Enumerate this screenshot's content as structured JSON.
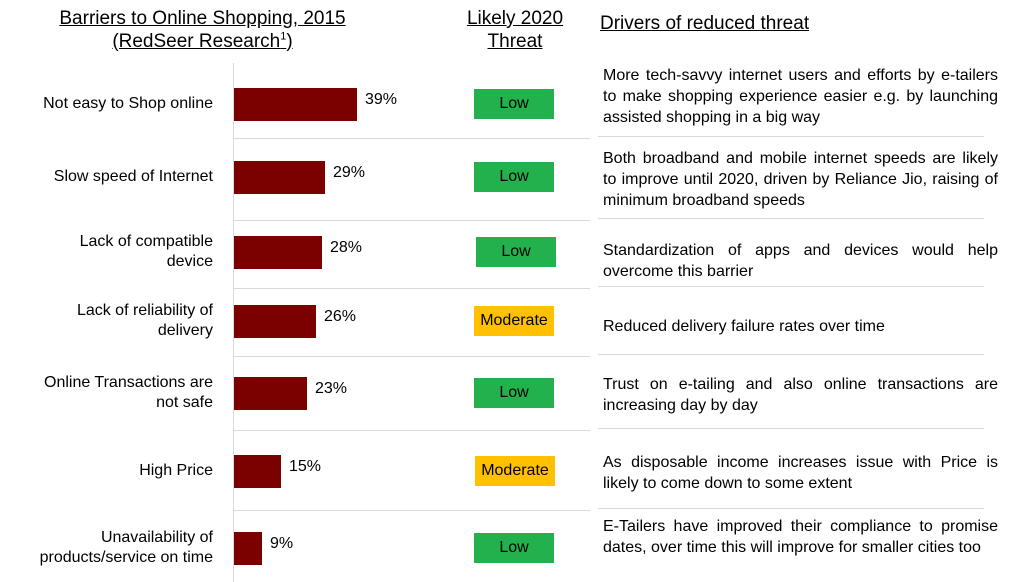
{
  "headers": {
    "barriers_title": "Barriers to Online Shopping, 2015",
    "barriers_source": "(RedSeer Research",
    "barriers_source_sup": "1",
    "barriers_source_close": ")",
    "threat_line1": "Likely 2020",
    "threat_line2": "Threat",
    "drivers": "Drivers of reduced threat"
  },
  "rows": [
    {
      "label_lines": [
        "Not easy to Shop online"
      ],
      "value_label": "39%",
      "threat": "Low",
      "threat_color": "#22b14c",
      "driver": "More tech-savvy internet users and efforts by e-tailers to make shopping experience easier e.g. by launching assisted shopping in a big way"
    },
    {
      "label_lines": [
        "Slow speed of Internet"
      ],
      "value_label": "29%",
      "threat": "Low",
      "threat_color": "#22b14c",
      "driver": "Both broadband and mobile internet speeds are likely to improve until 2020, driven by Reliance Jio, raising of minimum broadband speeds"
    },
    {
      "label_lines": [
        "Lack of compatible",
        "device"
      ],
      "value_label": "28%",
      "threat": "Low",
      "threat_color": "#22b14c",
      "driver": "Standardization of apps and devices would help overcome this barrier"
    },
    {
      "label_lines": [
        "Lack of reliability of",
        "delivery"
      ],
      "value_label": "26%",
      "threat": "Moderate",
      "threat_color": "#ffc000",
      "driver": "Reduced delivery failure rates over time"
    },
    {
      "label_lines": [
        "Online Transactions are",
        "not safe"
      ],
      "value_label": "23%",
      "threat": "Low",
      "threat_color": "#22b14c",
      "driver": "Trust on e-tailing and also online transactions are increasing day by day"
    },
    {
      "label_lines": [
        "High Price"
      ],
      "value_label": "15%",
      "threat": "Moderate",
      "threat_color": "#ffc000",
      "driver": "As disposable income increases issue with Price is likely to come down to some extent"
    },
    {
      "label_lines": [
        "Unavailability of",
        "products/service on time"
      ],
      "value_label": "9%",
      "threat": "Low",
      "threat_color": "#22b14c",
      "driver": "E-Tailers have improved their compliance to promise dates, over time this will improve for smaller cities too"
    }
  ],
  "chart_data": {
    "type": "bar",
    "orientation": "horizontal",
    "title": "Barriers to Online Shopping, 2015",
    "categories": [
      "Not easy to Shop online",
      "Slow speed of Internet",
      "Lack of compatible device",
      "Lack of reliability of delivery",
      "Online Transactions are not safe",
      "High Price",
      "Unavailability of products/service on time"
    ],
    "values": [
      39,
      29,
      28,
      26,
      23,
      15,
      9
    ],
    "unit": "%",
    "bar_color": "#7b0000"
  }
}
